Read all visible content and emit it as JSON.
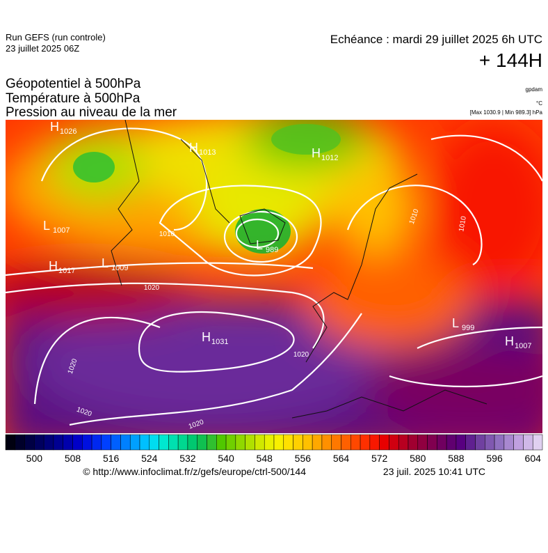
{
  "header": {
    "run": "Run GEFS (run controle)",
    "run_date": "23 juillet 2025 06Z",
    "valid": "Echéance : mardi 29 juillet 2025 6h UTC",
    "lead": "+ 144H",
    "titles": [
      "Géopotentiel à 500hPa",
      "Température à 500hPa",
      "Pression au niveau de la mer"
    ],
    "units": [
      "gpdam",
      "°C",
      "[Max 1030.9 | Min 989.3] hPa"
    ]
  },
  "map": {
    "centers": [
      {
        "letter": "H",
        "value": "1026"
      },
      {
        "letter": "H",
        "value": "1013"
      },
      {
        "letter": "H",
        "value": "1012"
      },
      {
        "letter": "L",
        "value": "1007"
      },
      {
        "letter": "L",
        "value": "989"
      },
      {
        "letter": "H",
        "value": "1017"
      },
      {
        "letter": "L",
        "value": "1009"
      },
      {
        "letter": "H",
        "value": "1031"
      },
      {
        "letter": "L",
        "value": "999"
      },
      {
        "letter": "H",
        "value": "1007"
      }
    ],
    "isobar_labels": [
      "1020",
      "1020",
      "1020",
      "1020",
      "1020",
      "1010",
      "1010",
      "1010"
    ]
  },
  "colorbar": {
    "labels": [
      500,
      508,
      516,
      524,
      532,
      540,
      548,
      556,
      564,
      572,
      580,
      588,
      596,
      604
    ],
    "colors": [
      "#000010",
      "#00002a",
      "#000044",
      "#00005e",
      "#000078",
      "#000092",
      "#0000ac",
      "#0000c8",
      "#0010e0",
      "#0028f0",
      "#0040ff",
      "#0060ff",
      "#0080ff",
      "#00a0ff",
      "#00c0ff",
      "#00dcf0",
      "#00e8d0",
      "#00e0b0",
      "#00d890",
      "#00c870",
      "#10c050",
      "#30c030",
      "#50c800",
      "#70d000",
      "#90d800",
      "#b0e000",
      "#d0e800",
      "#e8f000",
      "#f8f000",
      "#ffe000",
      "#ffd000",
      "#ffc000",
      "#ffa800",
      "#ff9000",
      "#ff7800",
      "#ff6000",
      "#ff4800",
      "#ff3000",
      "#f81800",
      "#e80000",
      "#d00010",
      "#b80020",
      "#a00030",
      "#900040",
      "#800050",
      "#700060",
      "#600070",
      "#580080",
      "#602090",
      "#7040a0",
      "#8058b0",
      "#9070c0",
      "#a888d0",
      "#c0a0e0",
      "#d0b8e8",
      "#e0d0f0"
    ]
  },
  "footer": {
    "source": "© http://www.infoclimat.fr/z/gefs/europe/ctrl-500/144",
    "generated": "23 juil. 2025 10:41 UTC"
  }
}
